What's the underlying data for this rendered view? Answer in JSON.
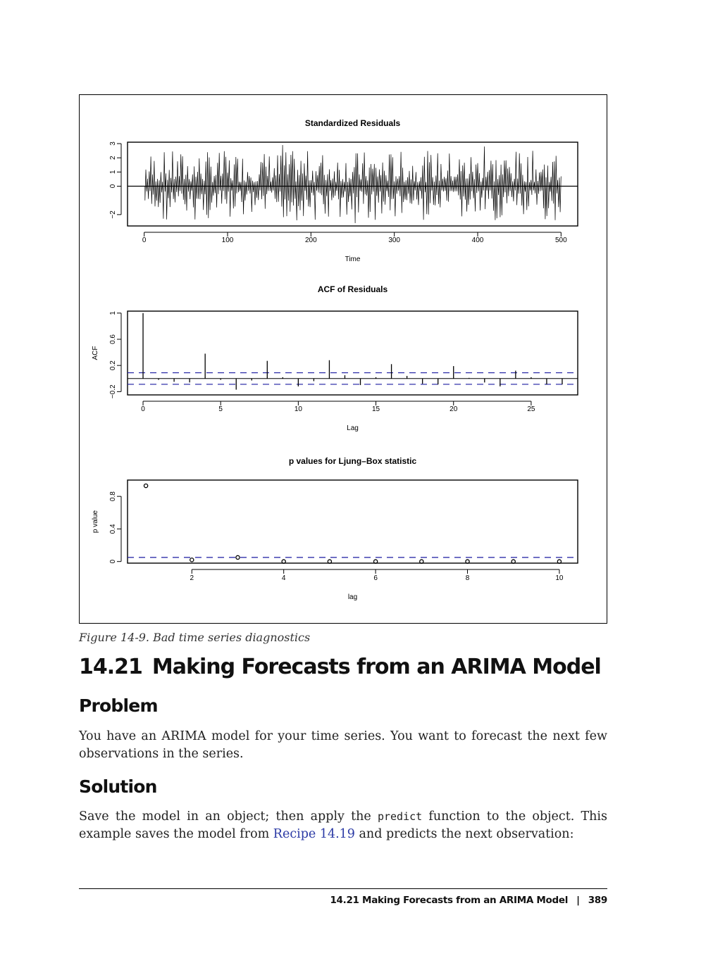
{
  "figure": {
    "caption": "Figure 14-9. Bad time series diagnostics",
    "colors": {
      "line": "#000000",
      "bound": "#1a1aa0"
    },
    "charts": [
      {
        "type": "bar",
        "title": "Standardized Residuals",
        "xlabel": "Time",
        "ylabel": "",
        "xlim": [
          -20,
          520
        ],
        "ylim": [
          -2.8,
          3.1
        ],
        "x_ticks": [
          0,
          100,
          200,
          300,
          400,
          500
        ],
        "y_ticks": [
          -2,
          0,
          1,
          2,
          3
        ],
        "x": [
          1,
          500
        ],
        "note_values": "500 residual values oscillating between about -2.6 and 2.9",
        "values": []
      },
      {
        "type": "bar",
        "title": "ACF of Residuals",
        "xlabel": "Lag",
        "ylabel": "ACF",
        "xlim": [
          -1,
          28
        ],
        "ylim": [
          -0.25,
          1.03
        ],
        "x_ticks": [
          0,
          5,
          10,
          15,
          20,
          25
        ],
        "y_ticks": [
          -0.2,
          0.2,
          0.6,
          1.0
        ],
        "bounds": [
          0.088,
          -0.088
        ],
        "lags": [
          0,
          1,
          2,
          3,
          4,
          5,
          6,
          7,
          8,
          9,
          10,
          11,
          12,
          13,
          14,
          15,
          16,
          17,
          18,
          19,
          20,
          21,
          22,
          23,
          24,
          25,
          26,
          27
        ],
        "values": [
          1.0,
          -0.02,
          -0.05,
          -0.06,
          0.38,
          -0.02,
          -0.17,
          -0.03,
          0.27,
          0.02,
          -0.12,
          -0.04,
          0.28,
          0.05,
          -0.1,
          0.02,
          0.22,
          0.04,
          -0.08,
          -0.09,
          0.19,
          0.01,
          -0.06,
          -0.12,
          0.12,
          0.02,
          -0.09,
          -0.09
        ]
      },
      {
        "type": "scatter",
        "title": "p values for Ljung–Box statistic",
        "xlabel": "lag",
        "ylabel": "p value",
        "xlim": [
          0.6,
          10.4
        ],
        "ylim": [
          -0.02,
          1.0
        ],
        "x_ticks": [
          2,
          4,
          6,
          8,
          10
        ],
        "y_ticks": [
          0.0,
          0.4,
          0.8
        ],
        "bound": 0.05,
        "x": [
          1,
          2,
          3,
          4,
          5,
          6,
          7,
          8,
          9,
          10
        ],
        "values": [
          0.93,
          0.02,
          0.05,
          0.0,
          0.0,
          0.0,
          0.0,
          0.0,
          0.0,
          0.0
        ]
      }
    ]
  },
  "section": {
    "number": "14.21",
    "title": "Making Forecasts from an ARIMA Model"
  },
  "problem": {
    "heading": "Problem",
    "text": "You have an ARIMA model for your time series. You want to forecast the next few observations in the series."
  },
  "solution": {
    "heading": "Solution",
    "text_before": "Save the model in an object; then apply the ",
    "code": "predict",
    "text_middle": " function to the object. This example saves the model from ",
    "link": "Recipe 14.19",
    "text_after": " and predicts the next observation:"
  },
  "footer": {
    "running_title": "14.21  Making Forecasts from an ARIMA Model",
    "separator": "|",
    "page_number": "389"
  }
}
